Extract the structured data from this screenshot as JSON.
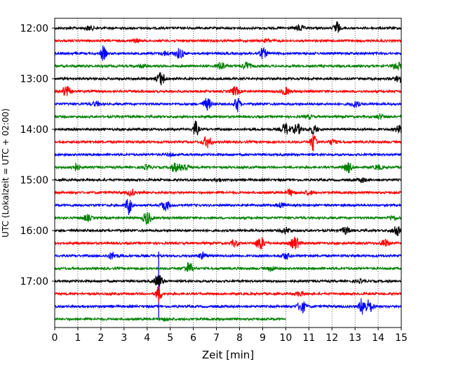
{
  "chart_data": {
    "type": "line",
    "subtype": "helicorder",
    "xlabel": "Zeit  [min]",
    "ylabel": "UTC (Lokalzeit = UTC + 02:00)",
    "xlim": [
      0,
      15
    ],
    "xticks": [
      0,
      1,
      2,
      3,
      4,
      5,
      6,
      7,
      8,
      9,
      10,
      11,
      12,
      13,
      14,
      15
    ],
    "grid": "vertical dotted",
    "y_tick_labels": [
      "12:00",
      "13:00",
      "14:00",
      "15:00",
      "16:00",
      "17:00"
    ],
    "row_minutes": 15,
    "trace_colors": [
      "#000000",
      "#ff0000",
      "#0000ff",
      "#008000"
    ],
    "traces": [
      {
        "start": "12:00",
        "end_min": 15,
        "events": [
          {
            "t": 1.5,
            "a": 3
          },
          {
            "t": 10.6,
            "a": 4
          },
          {
            "t": 12.2,
            "a": 10
          }
        ]
      },
      {
        "start": "12:15",
        "end_min": 15,
        "events": [
          {
            "t": 3.5,
            "a": 2
          },
          {
            "t": 9.2,
            "a": 2
          }
        ]
      },
      {
        "start": "12:30",
        "end_min": 15,
        "events": [
          {
            "t": 2.1,
            "a": 10
          },
          {
            "t": 4.8,
            "a": 3
          },
          {
            "t": 5.4,
            "a": 7
          },
          {
            "t": 9.0,
            "a": 7
          }
        ]
      },
      {
        "start": "12:45",
        "end_min": 15,
        "events": [
          {
            "t": 3.8,
            "a": 2
          },
          {
            "t": 7.2,
            "a": 6
          },
          {
            "t": 8.3,
            "a": 5
          },
          {
            "t": 14.8,
            "a": 6
          }
        ]
      },
      {
        "start": "13:00",
        "end_min": 15,
        "events": [
          {
            "t": 4.6,
            "a": 9
          },
          {
            "t": 14.9,
            "a": 5
          }
        ]
      },
      {
        "start": "13:15",
        "end_min": 15,
        "events": [
          {
            "t": 0.5,
            "a": 7
          },
          {
            "t": 7.8,
            "a": 6
          },
          {
            "t": 10.0,
            "a": 5
          }
        ]
      },
      {
        "start": "13:30",
        "end_min": 15,
        "events": [
          {
            "t": 1.8,
            "a": 3
          },
          {
            "t": 6.6,
            "a": 8
          },
          {
            "t": 7.9,
            "a": 11
          },
          {
            "t": 13.0,
            "a": 4
          }
        ]
      },
      {
        "start": "13:45",
        "end_min": 15,
        "events": [
          {
            "t": 11.0,
            "a": 2
          },
          {
            "t": 14.1,
            "a": 3
          }
        ]
      },
      {
        "start": "14:00",
        "end_min": 15,
        "events": [
          {
            "t": 6.1,
            "a": 11
          },
          {
            "t": 10.0,
            "a": 8
          },
          {
            "t": 10.5,
            "a": 7
          },
          {
            "t": 11.2,
            "a": 6
          },
          {
            "t": 14.9,
            "a": 5
          }
        ]
      },
      {
        "start": "14:15",
        "end_min": 15,
        "events": [
          {
            "t": 6.6,
            "a": 8
          },
          {
            "t": 11.2,
            "a": 14
          },
          {
            "t": 12.0,
            "a": 3
          }
        ]
      },
      {
        "start": "14:30",
        "end_min": 15,
        "events": [
          {
            "t": 5.0,
            "a": 2
          }
        ]
      },
      {
        "start": "14:45",
        "end_min": 15,
        "events": [
          {
            "t": 0.9,
            "a": 5
          },
          {
            "t": 4.0,
            "a": 3
          },
          {
            "t": 5.2,
            "a": 6
          },
          {
            "t": 5.6,
            "a": 6
          },
          {
            "t": 12.7,
            "a": 7
          },
          {
            "t": 14.0,
            "a": 3
          }
        ]
      },
      {
        "start": "15:00",
        "end_min": 15,
        "events": [
          {
            "t": 7.1,
            "a": 2
          },
          {
            "t": 13.3,
            "a": 3
          }
        ]
      },
      {
        "start": "15:15",
        "end_min": 15,
        "events": [
          {
            "t": 3.3,
            "a": 4
          },
          {
            "t": 10.2,
            "a": 4
          },
          {
            "t": 11.0,
            "a": 3
          }
        ]
      },
      {
        "start": "15:30",
        "end_min": 15,
        "events": [
          {
            "t": 3.2,
            "a": 13
          },
          {
            "t": 4.8,
            "a": 7
          },
          {
            "t": 9.8,
            "a": 3
          }
        ]
      },
      {
        "start": "15:45",
        "end_min": 15,
        "events": [
          {
            "t": 1.4,
            "a": 4
          },
          {
            "t": 4.0,
            "a": 9
          },
          {
            "t": 14.6,
            "a": 3
          }
        ]
      },
      {
        "start": "16:00",
        "end_min": 15,
        "events": [
          {
            "t": 10.0,
            "a": 4
          },
          {
            "t": 12.6,
            "a": 5
          },
          {
            "t": 14.8,
            "a": 7
          }
        ]
      },
      {
        "start": "16:15",
        "end_min": 15,
        "events": [
          {
            "t": 7.8,
            "a": 4
          },
          {
            "t": 8.9,
            "a": 9
          },
          {
            "t": 10.4,
            "a": 9
          },
          {
            "t": 14.3,
            "a": 5
          }
        ]
      },
      {
        "start": "16:30",
        "end_min": 15,
        "events": [
          {
            "t": 2.5,
            "a": 5
          },
          {
            "t": 6.4,
            "a": 4
          },
          {
            "t": 10.0,
            "a": 4
          },
          {
            "t": 4.5,
            "a": 30
          }
        ]
      },
      {
        "start": "16:45",
        "end_min": 15,
        "events": [
          {
            "t": 5.8,
            "a": 8
          },
          {
            "t": 9.4,
            "a": 3
          }
        ]
      },
      {
        "start": "17:00",
        "end_min": 15,
        "events": [
          {
            "t": 4.5,
            "a": 9
          },
          {
            "t": 13.2,
            "a": 2
          }
        ]
      },
      {
        "start": "17:15",
        "end_min": 15,
        "events": [
          {
            "t": 10.6,
            "a": 3
          },
          {
            "t": 4.5,
            "a": 12
          }
        ]
      },
      {
        "start": "17:30",
        "end_min": 15,
        "events": [
          {
            "t": 10.7,
            "a": 8
          },
          {
            "t": 13.3,
            "a": 12
          },
          {
            "t": 13.6,
            "a": 9
          }
        ]
      },
      {
        "start": "17:45",
        "end_min": 10,
        "events": [
          {
            "t": 4.8,
            "a": 2
          }
        ]
      }
    ]
  }
}
